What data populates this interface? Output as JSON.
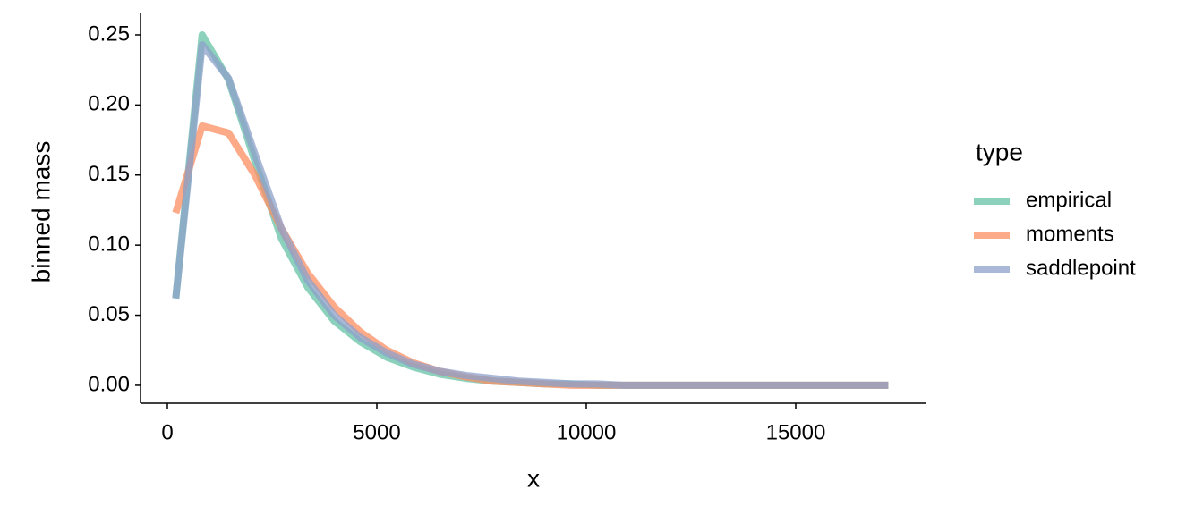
{
  "chart_data": {
    "type": "line",
    "x_label": "x",
    "y_label": "binned mass",
    "legend_title": "type",
    "legend_position": "right",
    "x": [
      200,
      830,
      1460,
      2090,
      2720,
      3350,
      3980,
      4610,
      5240,
      5870,
      6500,
      7130,
      7760,
      8390,
      9020,
      9650,
      10280,
      10910,
      11540,
      12170,
      12800,
      13430,
      14060,
      14690,
      15320,
      15950,
      16580,
      17210
    ],
    "series": [
      {
        "name": "empirical",
        "color": "#66c2a5",
        "values": [
          0.062,
          0.25,
          0.218,
          0.16,
          0.105,
          0.07,
          0.046,
          0.031,
          0.02,
          0.013,
          0.008,
          0.005,
          0.003,
          0.002,
          0.001,
          0.001,
          0,
          0,
          0,
          0,
          0,
          0,
          0,
          0,
          0,
          0,
          0,
          0
        ]
      },
      {
        "name": "moments",
        "color": "#fc8d62",
        "values": [
          0.123,
          0.185,
          0.18,
          0.15,
          0.112,
          0.08,
          0.056,
          0.038,
          0.025,
          0.016,
          0.01,
          0.006,
          0.003,
          0.002,
          0.001,
          0,
          0,
          0,
          0,
          0,
          0,
          0,
          0,
          0,
          0,
          0,
          0,
          0
        ]
      },
      {
        "name": "saddlepoint",
        "color": "#8da0cb",
        "values": [
          0.062,
          0.243,
          0.219,
          0.165,
          0.112,
          0.075,
          0.05,
          0.034,
          0.023,
          0.015,
          0.01,
          0.007,
          0.005,
          0.003,
          0.002,
          0.001,
          0.001,
          0,
          0,
          0,
          0,
          0,
          0,
          0,
          0,
          0,
          0,
          0
        ]
      }
    ],
    "xlim": [
      -641,
      18120
    ],
    "xticks": [
      0,
      5000,
      10000,
      15000
    ],
    "ylim": [
      -0.0128,
      0.2653
    ],
    "yticks": [
      {
        "value": 0,
        "label": "0.00"
      },
      {
        "value": 0.05,
        "label": "0.05"
      },
      {
        "value": 0.1,
        "label": "0.10"
      },
      {
        "value": 0.15,
        "label": "0.15"
      },
      {
        "value": 0.2,
        "label": "0.20"
      },
      {
        "value": 0.25,
        "label": "0.25"
      }
    ],
    "grid": false
  }
}
